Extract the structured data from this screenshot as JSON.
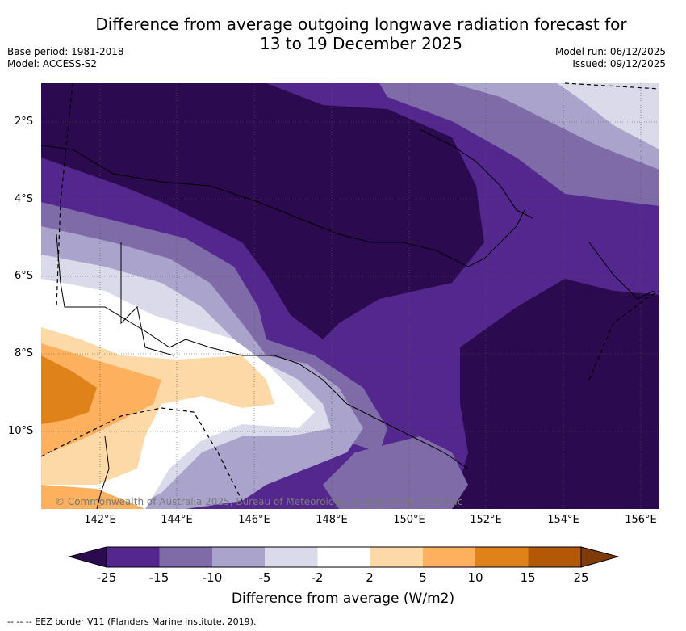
{
  "title": {
    "line1": "Difference from average outgoing longwave radiation forecast for",
    "line2": "13 to 19 December 2025"
  },
  "meta": {
    "base_period": "Base period: 1981-2018",
    "model": "Model: ACCESS-S2",
    "model_run": "Model run: 06/12/2025",
    "issued": "Issued: 09/12/2025"
  },
  "map": {
    "latitude_labels": [
      "2°S",
      "4°S",
      "6°S",
      "8°S",
      "10°S"
    ],
    "longitude_labels": [
      "142°E",
      "144°E",
      "146°E",
      "148°E",
      "150°E",
      "152°E",
      "154°E",
      "156°E"
    ],
    "copyright": "© Commonwealth of Australia 2025, Bureau of Meteorology, supported by COSPPac"
  },
  "colorbar": {
    "ticks": [
      "-25",
      "-15",
      "-10",
      "-5",
      "-2",
      "2",
      "5",
      "10",
      "15",
      "25"
    ],
    "colors": [
      "#2c0a4f",
      "#54278f",
      "#7e6ba8",
      "#aaa4cd",
      "#dadaeb",
      "#ffffff",
      "#fdd9a8",
      "#fdb05e",
      "#e0821a",
      "#b35806",
      "#7f3b08"
    ],
    "title": "Difference from average (W/m2)"
  },
  "footnote": "--  --  -- EEZ border V11 (Flanders Marine Institute, 2019)."
}
